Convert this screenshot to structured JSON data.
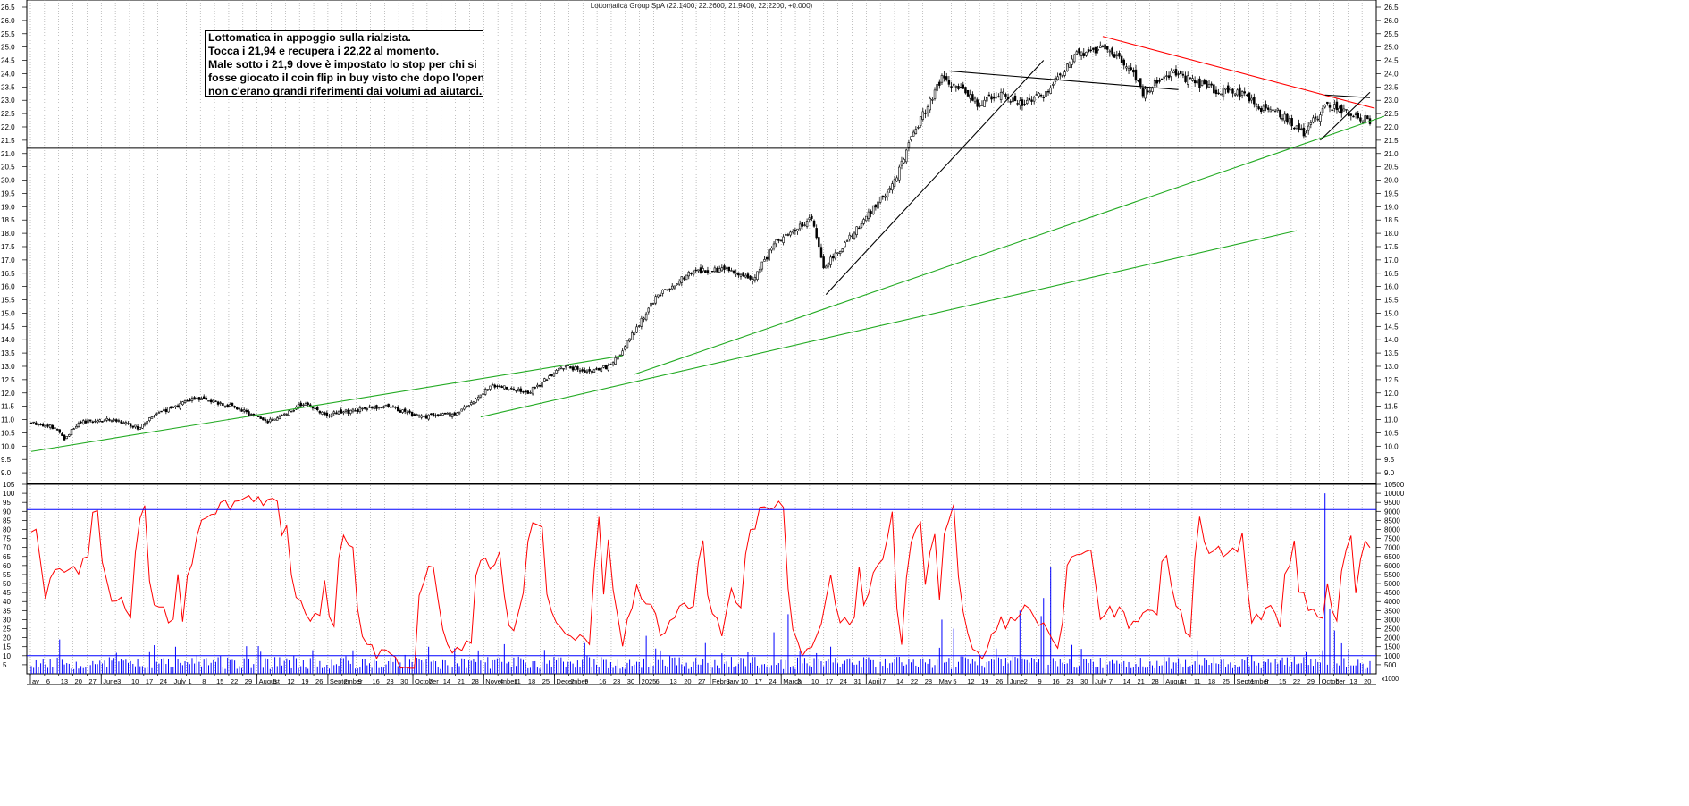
{
  "chart_title": "Lottomatica Group SpA (22.1400, 22.2600, 21.9400, 22.2200, +0.000)",
  "annotation": {
    "lines": [
      "Lottomatica in appoggio sulla rialzista.",
      "Tocca i 21,94 e recupera i 22,22 al momento.",
      "Male sotto i 21,9 dove è impostato lo stop per chi si",
      "fosse giocato il coin flip in buy visto che dopo l'open",
      "non c'erano grandi riferimenti dai volumi ad aiutarci."
    ]
  },
  "colors": {
    "candle": "#000000",
    "support_line": "#000000",
    "uptrend": "#22aa22",
    "downtrend": "#ff0000",
    "oscillator": "#ff0000",
    "volume": "#0000ff",
    "level_lines": "#0000ff",
    "grid": "#999999"
  },
  "chart_data": {
    "type": "candlestick",
    "price_axis": {
      "ylim": [
        8.6,
        26.5
      ],
      "ticks": [
        "9.0",
        "9.5",
        "10.0",
        "10.5",
        "11.0",
        "11.5",
        "12.0",
        "12.5",
        "13.0",
        "13.5",
        "14.0",
        "14.5",
        "15.0",
        "15.5",
        "16.0",
        "16.5",
        "17.0",
        "17.5",
        "18.0",
        "18.5",
        "19.0",
        "19.5",
        "20.0",
        "20.5",
        "21.0",
        "21.5",
        "22.0",
        "22.5",
        "23.0",
        "23.5",
        "24.0",
        "24.5",
        "25.0",
        "25.5",
        "26.0",
        "26.5"
      ]
    },
    "price_keypoints": [
      [
        0,
        10.9
      ],
      [
        10,
        10.7
      ],
      [
        14,
        10.3
      ],
      [
        20,
        10.9
      ],
      [
        35,
        11.0
      ],
      [
        45,
        10.7
      ],
      [
        55,
        11.3
      ],
      [
        70,
        11.8
      ],
      [
        85,
        11.5
      ],
      [
        100,
        10.9
      ],
      [
        115,
        11.6
      ],
      [
        125,
        11.2
      ],
      [
        150,
        11.5
      ],
      [
        165,
        11.1
      ],
      [
        180,
        11.2
      ],
      [
        195,
        12.3
      ],
      [
        210,
        12.0
      ],
      [
        225,
        13.0
      ],
      [
        235,
        12.8
      ],
      [
        245,
        13.0
      ],
      [
        255,
        14.3
      ],
      [
        265,
        15.7
      ],
      [
        280,
        16.6
      ],
      [
        295,
        16.6
      ],
      [
        305,
        16.3
      ],
      [
        315,
        17.7
      ],
      [
        330,
        18.6
      ],
      [
        335,
        16.7
      ],
      [
        341,
        17.3
      ],
      [
        355,
        18.8
      ],
      [
        365,
        20.0
      ],
      [
        372,
        21.5
      ],
      [
        380,
        23.0
      ],
      [
        385,
        23.8
      ],
      [
        395,
        23.3
      ],
      [
        400,
        22.9
      ],
      [
        410,
        23.2
      ],
      [
        420,
        22.9
      ],
      [
        430,
        23.3
      ],
      [
        440,
        24.6
      ],
      [
        452,
        25.0
      ],
      [
        465,
        24.3
      ],
      [
        470,
        23.2
      ],
      [
        480,
        24.0
      ],
      [
        490,
        23.8
      ],
      [
        500,
        23.4
      ],
      [
        510,
        23.3
      ],
      [
        520,
        22.7
      ],
      [
        528,
        22.5
      ],
      [
        538,
        21.8
      ],
      [
        548,
        22.8
      ],
      [
        558,
        22.5
      ],
      [
        566,
        22.2
      ]
    ],
    "price_seed": 11,
    "support_level": 21.2,
    "trendlines": [
      {
        "name": "",
        "color": "uptrend",
        "points": [
          [
            0,
            9.8
          ],
          [
            250,
            13.4
          ]
        ]
      },
      {
        "name": "",
        "color": "uptrend",
        "points": [
          [
            190,
            11.1
          ],
          [
            535,
            18.1
          ]
        ]
      },
      {
        "name": "",
        "color": "uptrend",
        "points": [
          [
            255,
            12.7
          ],
          [
            572,
            22.4
          ]
        ]
      },
      {
        "name": "",
        "color": "support_line",
        "points": [
          [
            336,
            15.7
          ],
          [
            428,
            24.5
          ]
        ]
      },
      {
        "name": "",
        "color": "support_line",
        "points": [
          [
            388,
            24.1
          ],
          [
            485,
            23.4
          ]
        ]
      },
      {
        "name": "",
        "color": "downtrend",
        "points": [
          [
            453,
            25.4
          ],
          [
            568,
            22.7
          ]
        ]
      },
      {
        "name": "",
        "color": "support_line",
        "points": [
          [
            547,
            23.2
          ],
          [
            566,
            23.1
          ]
        ]
      },
      {
        "name": "",
        "color": "support_line",
        "points": [
          [
            545,
            21.5
          ],
          [
            566,
            23.3
          ]
        ]
      }
    ],
    "bars_count": 567,
    "oscillator": {
      "ylim": [
        0,
        105
      ],
      "level": 91,
      "ticks": [
        "5",
        "10",
        "15",
        "20",
        "25",
        "30",
        "35",
        "40",
        "45",
        "50",
        "55",
        "60",
        "65",
        "70",
        "75",
        "80",
        "85",
        "90",
        "95",
        "100",
        "105"
      ],
      "seed": 29
    },
    "volume": {
      "ylim": [
        0,
        10500
      ],
      "level": 1000,
      "ticks": [
        "500",
        "1000",
        "1500",
        "2000",
        "2500",
        "3000",
        "3500",
        "4000",
        "4500",
        "5000",
        "5500",
        "6000",
        "6500",
        "7000",
        "7500",
        "8000",
        "8500",
        "9000",
        "9500",
        "10000",
        "10500"
      ],
      "unit_label": "x1000",
      "seed": 53
    },
    "date_axis": {
      "labels": [
        {
          "t": "ay",
          "m": true
        },
        {
          "t": "6"
        },
        {
          "t": "13"
        },
        {
          "t": "20"
        },
        {
          "t": "27"
        },
        {
          "t": "June",
          "m": true
        },
        {
          "t": "3"
        },
        {
          "t": "10"
        },
        {
          "t": "17"
        },
        {
          "t": "24"
        },
        {
          "t": "July",
          "m": true
        },
        {
          "t": "1"
        },
        {
          "t": "8"
        },
        {
          "t": "15"
        },
        {
          "t": "22"
        },
        {
          "t": "29"
        },
        {
          "t": "August",
          "m": true
        },
        {
          "t": "5"
        },
        {
          "t": "12"
        },
        {
          "t": "19"
        },
        {
          "t": "26"
        },
        {
          "t": "September",
          "m": true
        },
        {
          "t": "2"
        },
        {
          "t": "9"
        },
        {
          "t": "16"
        },
        {
          "t": "23"
        },
        {
          "t": "30"
        },
        {
          "t": "October",
          "m": true
        },
        {
          "t": "7"
        },
        {
          "t": "14"
        },
        {
          "t": "21"
        },
        {
          "t": "28"
        },
        {
          "t": "November",
          "m": true
        },
        {
          "t": "4"
        },
        {
          "t": "11"
        },
        {
          "t": "18"
        },
        {
          "t": "25"
        },
        {
          "t": "December",
          "m": true
        },
        {
          "t": "2"
        },
        {
          "t": "9"
        },
        {
          "t": "16"
        },
        {
          "t": "23"
        },
        {
          "t": "30"
        },
        {
          "t": "2025",
          "m": true
        },
        {
          "t": "6"
        },
        {
          "t": "13"
        },
        {
          "t": "20"
        },
        {
          "t": "27"
        },
        {
          "t": "February",
          "m": true
        },
        {
          "t": "3"
        },
        {
          "t": "10"
        },
        {
          "t": "17"
        },
        {
          "t": "24"
        },
        {
          "t": "March",
          "m": true
        },
        {
          "t": "3"
        },
        {
          "t": "10"
        },
        {
          "t": "17"
        },
        {
          "t": "24"
        },
        {
          "t": "31"
        },
        {
          "t": "April",
          "m": true
        },
        {
          "t": "7"
        },
        {
          "t": "14"
        },
        {
          "t": "22"
        },
        {
          "t": "28"
        },
        {
          "t": "May",
          "m": true
        },
        {
          "t": "5"
        },
        {
          "t": "12"
        },
        {
          "t": "19"
        },
        {
          "t": "26"
        },
        {
          "t": "June",
          "m": true
        },
        {
          "t": "2"
        },
        {
          "t": "9"
        },
        {
          "t": "16"
        },
        {
          "t": "23"
        },
        {
          "t": "30"
        },
        {
          "t": "July",
          "m": true
        },
        {
          "t": "7"
        },
        {
          "t": "14"
        },
        {
          "t": "21"
        },
        {
          "t": "28"
        },
        {
          "t": "August",
          "m": true
        },
        {
          "t": "4"
        },
        {
          "t": "11"
        },
        {
          "t": "18"
        },
        {
          "t": "25"
        },
        {
          "t": "September",
          "m": true
        },
        {
          "t": "1"
        },
        {
          "t": "8"
        },
        {
          "t": "15"
        },
        {
          "t": "22"
        },
        {
          "t": "29"
        },
        {
          "t": "October",
          "m": true
        },
        {
          "t": "6"
        },
        {
          "t": "13"
        },
        {
          "t": "20"
        }
      ]
    }
  }
}
